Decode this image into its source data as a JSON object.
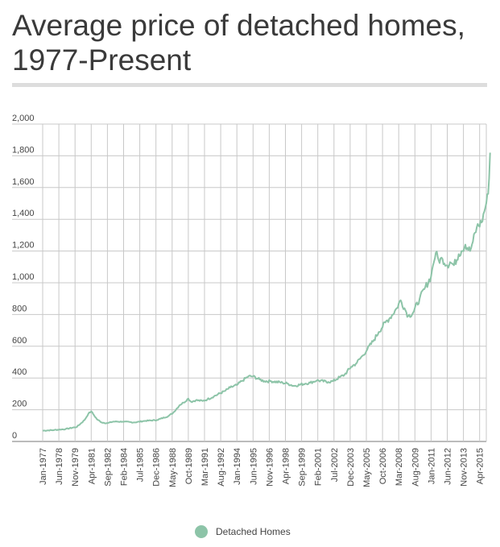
{
  "chart_data": {
    "type": "line",
    "title": "Average price of detached homes, 1977-Present",
    "xlabel": "",
    "ylabel": "",
    "ylim": [
      0,
      2000
    ],
    "yticks": [
      "2,000",
      "1,800",
      "1,600",
      "1,400",
      "1,200",
      "1,000",
      "800",
      "600",
      "400",
      "200",
      "0"
    ],
    "x_tick_labels": [
      "Jan-1977",
      "Jun-1978",
      "Nov-1979",
      "Apr-1981",
      "Sep-1982",
      "Feb-1984",
      "Jul-1985",
      "Dec-1986",
      "May-1988",
      "Oct-1989",
      "Mar-1991",
      "Aug-1992",
      "Jan-1994",
      "Jun-1995",
      "Nov-1996",
      "Apr-1998",
      "Sep-1999",
      "Feb-2001",
      "Jul-2002",
      "Dec-2003",
      "May-2005",
      "Oct-2006",
      "Mar-2008",
      "Aug-2009",
      "Jan-2011",
      "Jun-2012",
      "Nov-2013",
      "Apr-2015"
    ],
    "grid": true,
    "legend": {
      "position": "bottom-center"
    },
    "series": [
      {
        "name": "Detached Homes",
        "color": "#8dc4a8",
        "x": [
          "1977-01",
          "1978-01",
          "1979-01",
          "1980-01",
          "1980-09",
          "1981-01",
          "1981-04",
          "1981-07",
          "1981-10",
          "1982-03",
          "1982-09",
          "1983-03",
          "1984-01",
          "1985-01",
          "1986-01",
          "1987-01",
          "1988-01",
          "1988-06",
          "1989-01",
          "1989-05",
          "1989-10",
          "1990-01",
          "1990-06",
          "1991-01",
          "1991-06",
          "1992-01",
          "1993-01",
          "1993-06",
          "1994-01",
          "1994-06",
          "1995-01",
          "1995-06",
          "1996-01",
          "1996-06",
          "1997-01",
          "1998-01",
          "1998-06",
          "1999-01",
          "2000-01",
          "2000-06",
          "2001-01",
          "2002-01",
          "2002-06",
          "2003-01",
          "2003-06",
          "2004-01",
          "2004-06",
          "2005-01",
          "2005-06",
          "2006-01",
          "2006-06",
          "2007-01",
          "2007-06",
          "2008-01",
          "2008-05",
          "2008-09",
          "2009-01",
          "2009-06",
          "2010-01",
          "2010-06",
          "2011-01",
          "2011-03",
          "2011-06",
          "2011-09",
          "2012-01",
          "2012-06",
          "2012-09",
          "2013-01",
          "2013-06",
          "2013-09",
          "2014-01",
          "2014-06",
          "2014-09",
          "2015-01",
          "2015-06",
          "2015-09",
          "2016-01",
          "2016-03"
        ],
        "values": [
          68,
          72,
          78,
          92,
          135,
          175,
          190,
          165,
          140,
          120,
          115,
          125,
          125,
          120,
          130,
          135,
          160,
          180,
          230,
          245,
          270,
          250,
          260,
          255,
          265,
          285,
          320,
          340,
          355,
          380,
          410,
          410,
          390,
          380,
          380,
          370,
          365,
          350,
          365,
          370,
          385,
          375,
          380,
          405,
          420,
          470,
          490,
          540,
          580,
          640,
          690,
          750,
          780,
          840,
          890,
          840,
          790,
          810,
          900,
          960,
          1040,
          1110,
          1190,
          1140,
          1150,
          1110,
          1130,
          1110,
          1180,
          1200,
          1240,
          1200,
          1260,
          1350,
          1380,
          1450,
          1560,
          1820
        ]
      }
    ]
  }
}
